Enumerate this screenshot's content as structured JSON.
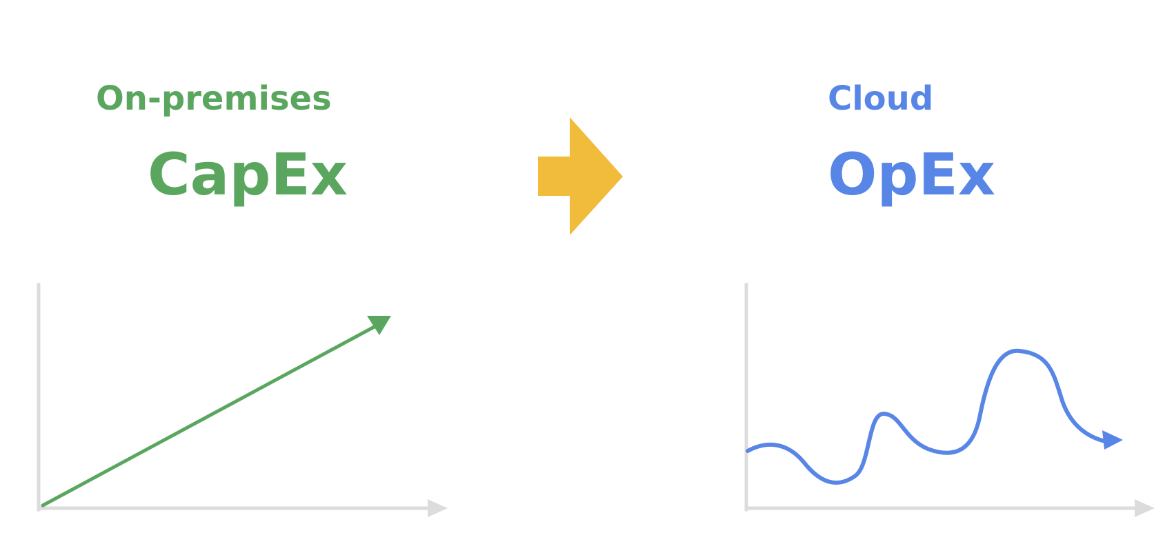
{
  "diagram": {
    "left_panel": {
      "subtitle": "On-premises",
      "title": "CapEx",
      "color": "#5aa65f",
      "trend": "linear-increasing"
    },
    "transition_arrow": {
      "color": "#f1bb3c",
      "direction": "right"
    },
    "right_panel": {
      "subtitle": "Cloud",
      "title": "OpEx",
      "color": "#5886e6",
      "trend": "fluctuating"
    },
    "axis_color": "#dcdcdc"
  }
}
